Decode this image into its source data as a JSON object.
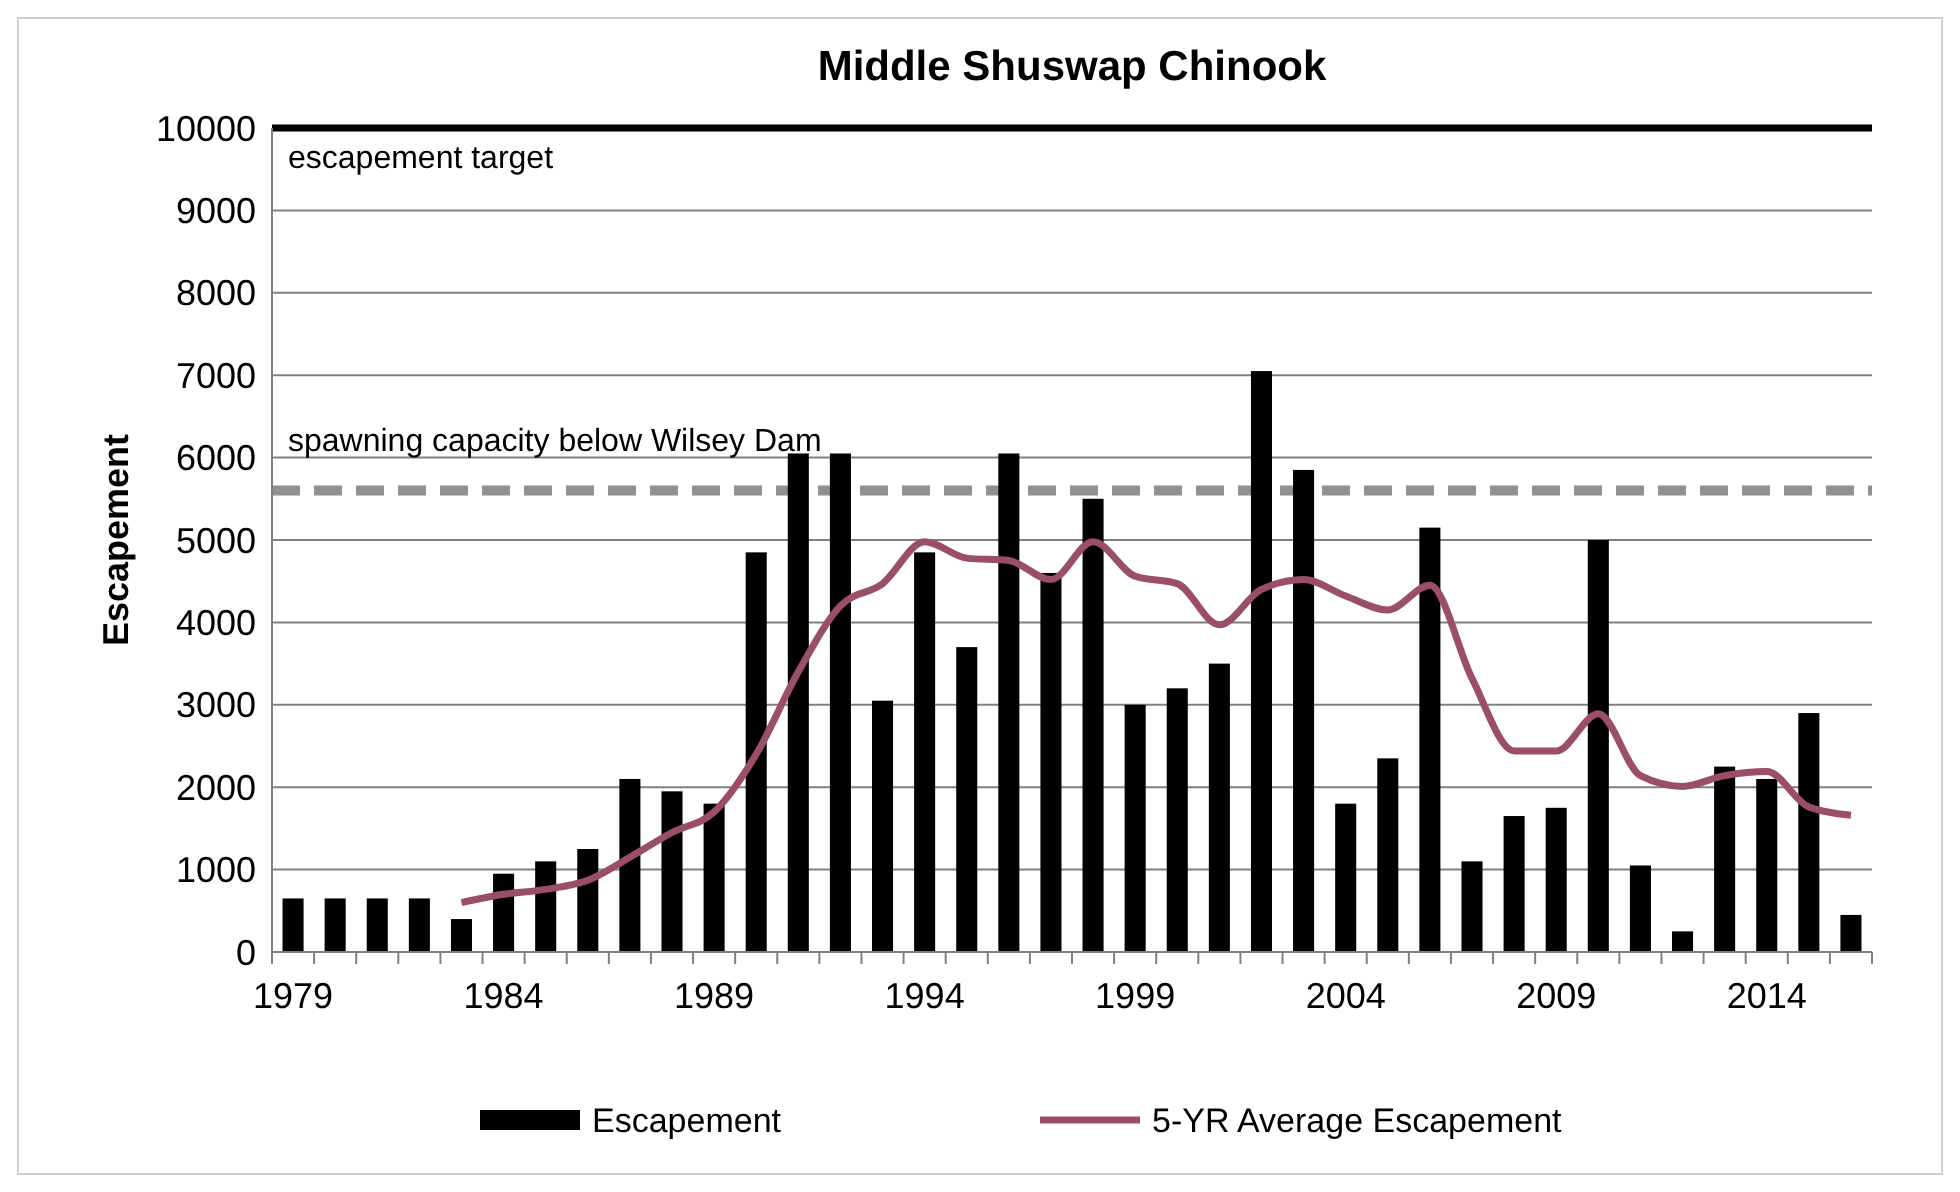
{
  "chart_data": {
    "type": "bar",
    "title": "Middle Shuswap Chinook",
    "ylabel": "Escapement",
    "categories": [
      "1979",
      null,
      null,
      null,
      null,
      "1984",
      null,
      null,
      null,
      null,
      "1989",
      null,
      null,
      null,
      null,
      "1994",
      null,
      null,
      null,
      null,
      "1999",
      null,
      null,
      null,
      null,
      "2004",
      null,
      null,
      null,
      null,
      "2009",
      null,
      null,
      null,
      null,
      "2014",
      null,
      null
    ],
    "series": [
      {
        "name": "Escapement",
        "color": "#000000",
        "values": [
          650,
          650,
          650,
          650,
          400,
          950,
          1100,
          1250,
          2100,
          1950,
          1800,
          4850,
          6050,
          6050,
          3050,
          4850,
          3700,
          6050,
          4600,
          5500,
          3000,
          3200,
          3500,
          7050,
          5850,
          1800,
          2350,
          5150,
          1100,
          1650,
          1750,
          5000,
          1050,
          250,
          2250,
          2100,
          2900,
          450
        ]
      },
      {
        "name": "5-YR Average Escapement",
        "type": "line",
        "color": "#9b4f64",
        "values": [
          null,
          null,
          null,
          null,
          600,
          700,
          760,
          870,
          1150,
          1450,
          1700,
          2400,
          3400,
          4200,
          4470,
          4980,
          4780,
          4750,
          4520,
          4980,
          4560,
          4470,
          3970,
          4400,
          4520,
          4320,
          4150,
          4450,
          3320,
          2440,
          2440,
          2890,
          2140,
          2010,
          2140,
          2190,
          1760,
          1660
        ]
      }
    ],
    "ylim": [
      0,
      10000
    ],
    "yticks": [
      0,
      1000,
      2000,
      3000,
      4000,
      5000,
      6000,
      7000,
      8000,
      9000,
      10000
    ],
    "grid": "y",
    "legend": "bottom",
    "ref_lines": [
      {
        "axis": "y",
        "value": 10000,
        "label": "escapement target",
        "color": "#000000",
        "line_style": "solid"
      },
      {
        "axis": "y",
        "value": 5600,
        "label": "spawning capacity below Wilsey Dam",
        "color": "#909090",
        "line_style": "dashed"
      }
    ]
  }
}
